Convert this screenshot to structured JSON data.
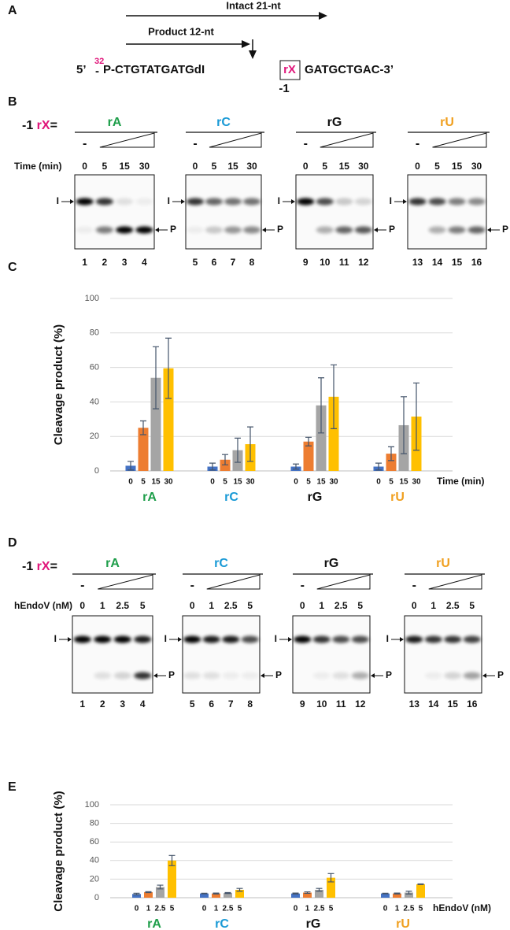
{
  "panel_labels": [
    "A",
    "B",
    "C",
    "D",
    "E"
  ],
  "panel_a": {
    "intact": "Intact 21-nt",
    "product": "Product 12-nt",
    "five": "5’",
    "dash": "-",
    "isotope": "32",
    "left": "P-CTGTATGATGdI",
    "rx": "rX",
    "right": "GATGCTGAC-3’",
    "position": "-1"
  },
  "gels": [
    {
      "prefix": "-1 ",
      "rx": "rX",
      "eq": "=",
      "row_label": "Time (min)",
      "band_i": "I",
      "band_p": "P",
      "groups": [
        {
          "name": "rA",
          "color": "#1e9e4a",
          "minus": "-",
          "lanes": [
            "0",
            "5",
            "15",
            "30"
          ],
          "numbers": [
            "1",
            "2",
            "3",
            "4"
          ]
        },
        {
          "name": "rC",
          "color": "#1a9ad6",
          "minus": "-",
          "lanes": [
            "0",
            "5",
            "15",
            "30"
          ],
          "numbers": [
            "5",
            "6",
            "7",
            "8"
          ]
        },
        {
          "name": "rG",
          "color": "#111111",
          "minus": "-",
          "lanes": [
            "0",
            "5",
            "15",
            "30"
          ],
          "numbers": [
            "9",
            "10",
            "11",
            "12"
          ]
        },
        {
          "name": "rU",
          "color": "#f0a020",
          "minus": "-",
          "lanes": [
            "0",
            "5",
            "15",
            "30"
          ],
          "numbers": [
            "13",
            "14",
            "15",
            "16"
          ]
        }
      ]
    },
    {
      "prefix": "-1 ",
      "rx": "rX",
      "eq": "=",
      "row_label": "hEndoV (nM)",
      "band_i": "I",
      "band_p": "P",
      "groups": [
        {
          "name": "rA",
          "color": "#1e9e4a",
          "minus": "-",
          "lanes": [
            "0",
            "1",
            "2.5",
            "5"
          ],
          "numbers": [
            "1",
            "2",
            "3",
            "4"
          ]
        },
        {
          "name": "rC",
          "color": "#1a9ad6",
          "minus": "-",
          "lanes": [
            "0",
            "1",
            "2.5",
            "5"
          ],
          "numbers": [
            "5",
            "6",
            "7",
            "8"
          ]
        },
        {
          "name": "rG",
          "color": "#111111",
          "minus": "-",
          "lanes": [
            "0",
            "1",
            "2.5",
            "5"
          ],
          "numbers": [
            "9",
            "10",
            "11",
            "12"
          ]
        },
        {
          "name": "rU",
          "color": "#f0a020",
          "minus": "-",
          "lanes": [
            "0",
            "1",
            "2.5",
            "5"
          ],
          "numbers": [
            "13",
            "14",
            "15",
            "16"
          ]
        }
      ]
    }
  ],
  "chart_data": [
    {
      "type": "bar",
      "ylabel": "Cleavage product (%)",
      "xlabel": "Time (min)",
      "categories": [
        "rA",
        "rC",
        "rG",
        "rU"
      ],
      "category_colors": [
        "#1e9e4a",
        "#1a9ad6",
        "#111111",
        "#f0a020"
      ],
      "series": [
        {
          "name": "0",
          "color": "#4472c4",
          "values": [
            3,
            2.5,
            2.5,
            2.5
          ],
          "errors": [
            2.5,
            2,
            1.5,
            2
          ]
        },
        {
          "name": "5",
          "color": "#ed7d31",
          "values": [
            25,
            6.5,
            17,
            10
          ],
          "errors": [
            4,
            3,
            2.5,
            4
          ]
        },
        {
          "name": "15",
          "color": "#a5a5a5",
          "values": [
            54,
            12,
            38,
            26.5
          ],
          "errors": [
            18,
            7,
            16,
            16.5
          ]
        },
        {
          "name": "30",
          "color": "#ffc000",
          "values": [
            59.5,
            15.5,
            43,
            31.5
          ],
          "errors": [
            17.5,
            10,
            18.5,
            19.5
          ]
        }
      ],
      "ylim": [
        0,
        100
      ],
      "yticks": [
        0,
        20,
        40,
        60,
        80,
        100
      ],
      "grid": true,
      "error_color": "#44546a"
    },
    {
      "type": "bar",
      "ylabel": "Cleavage product (%)",
      "xlabel": "hEndoV (nM)",
      "categories": [
        "rA",
        "rC",
        "rG",
        "rU"
      ],
      "category_colors": [
        "#1e9e4a",
        "#1a9ad6",
        "#111111",
        "#f0a020"
      ],
      "series": [
        {
          "name": "0",
          "color": "#4472c4",
          "values": [
            4,
            4.5,
            4.5,
            4.5
          ],
          "errors": [
            0.8,
            0.3,
            0.5,
            0.3
          ]
        },
        {
          "name": "1",
          "color": "#ed7d31",
          "values": [
            6,
            4.5,
            5.5,
            4.5
          ],
          "errors": [
            0.5,
            0.5,
            0.8,
            0.5
          ]
        },
        {
          "name": "2.5",
          "color": "#a5a5a5",
          "values": [
            11.5,
            5,
            8.5,
            5.5
          ],
          "errors": [
            2,
            0.5,
            1.5,
            1.5
          ]
        },
        {
          "name": "5",
          "color": "#ffc000",
          "values": [
            40,
            8.5,
            21.5,
            14.5
          ],
          "errors": [
            5.5,
            1.5,
            4.5,
            0.3
          ]
        }
      ],
      "ylim": [
        0,
        100
      ],
      "yticks": [
        0,
        20,
        40,
        60,
        80,
        100
      ],
      "grid": true,
      "error_color": "#44546a"
    }
  ]
}
